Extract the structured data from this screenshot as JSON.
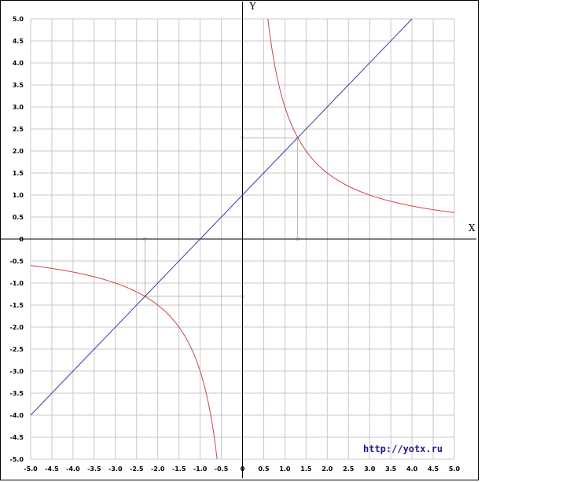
{
  "chart_data": {
    "type": "line",
    "xlabel": "X",
    "ylabel": "Y",
    "xlim": [
      -5,
      5
    ],
    "ylim": [
      -5,
      5
    ],
    "tick_step": 0.5,
    "grid": true,
    "x_tick_labels": [
      "-5.0",
      "-4.5",
      "-4.0",
      "-3.5",
      "-3.0",
      "-2.5",
      "-2.0",
      "-1.5",
      "-1.0",
      "-0.5",
      "0",
      "0.5",
      "1.0",
      "1.5",
      "2.0",
      "2.5",
      "3.0",
      "3.5",
      "4.0",
      "4.5",
      "5.0"
    ],
    "y_tick_labels": [
      "-5.0",
      "-4.5",
      "-4.0",
      "-3.5",
      "-3.0",
      "-2.5",
      "-2.0",
      "-1.5",
      "-1.0",
      "-0.5",
      "0",
      "0.5",
      "1.0",
      "1.5",
      "2.0",
      "2.5",
      "3.0",
      "3.5",
      "4.0",
      "4.5",
      "5.0"
    ],
    "series": [
      {
        "kind": "line",
        "color": "#3a3aa0",
        "slope": 1,
        "intercept": 1,
        "x": [
          -5,
          4
        ]
      },
      {
        "kind": "hyperbola",
        "color": "#c8474a",
        "k": 3,
        "branches": [
          [
            -5,
            -0.6
          ],
          [
            0.6,
            5
          ]
        ]
      }
    ],
    "intersections": [
      {
        "x": 1.3,
        "y": 2.3
      },
      {
        "x": -2.3,
        "y": -1.3
      }
    ],
    "guide_color": "#b8b8b8",
    "watermark": "http://yotx.ru"
  }
}
